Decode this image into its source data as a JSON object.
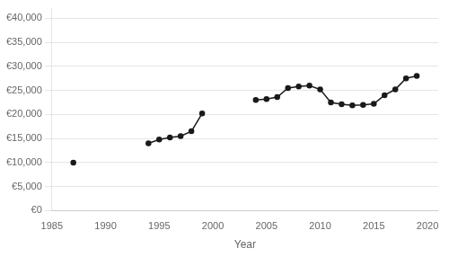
{
  "chart_data": {
    "type": "line",
    "xlabel": "Year",
    "x": [
      1987,
      1988,
      1989,
      1990,
      1991,
      1992,
      1993,
      1994,
      1995,
      1996,
      1997,
      1998,
      1999,
      2000,
      2001,
      2002,
      2003,
      2004,
      2005,
      2006,
      2007,
      2008,
      2009,
      2010,
      2011,
      2012,
      2013,
      2014,
      2015,
      2016,
      2017,
      2018,
      2019
    ],
    "values": [
      10000,
      null,
      null,
      null,
      null,
      null,
      null,
      14000,
      14800,
      15200,
      15500,
      16500,
      20200,
      null,
      null,
      null,
      null,
      23000,
      23200,
      23600,
      25500,
      25800,
      26000,
      25200,
      22500,
      22100,
      21900,
      22000,
      22200,
      24000,
      25200,
      27500,
      28000
    ],
    "color": "#1a1a1a",
    "marker": "circle",
    "xlim": [
      1985,
      2021
    ],
    "ylim": [
      0,
      42000
    ],
    "xticks": [
      1985,
      1990,
      1995,
      2000,
      2005,
      2010,
      2015,
      2020
    ],
    "yticks": [
      {
        "value": 0,
        "label": "€0"
      },
      {
        "value": 5000,
        "label": "€5,000"
      },
      {
        "value": 10000,
        "label": "€10,000"
      },
      {
        "value": 15000,
        "label": "€15,000"
      },
      {
        "value": 20000,
        "label": "€20,000"
      },
      {
        "value": 25000,
        "label": "€25,000"
      },
      {
        "value": 30000,
        "label": "€30,000"
      },
      {
        "value": 35000,
        "label": "€35,000"
      },
      {
        "value": 40000,
        "label": "€40,000"
      }
    ],
    "grid": "y"
  }
}
